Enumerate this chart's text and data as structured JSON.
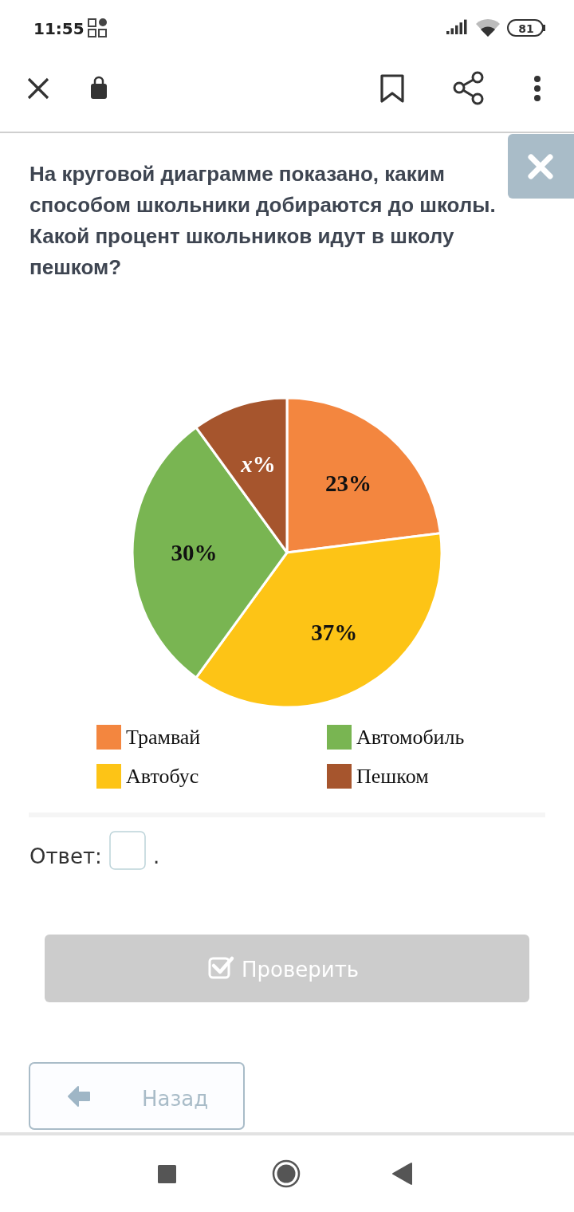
{
  "chart_data": {
    "type": "pie",
    "title": "На круговой диаграмме показано, каким способом школьники добираются до школы. Какой процент школьников идут в школу пешком?",
    "categories": [
      "Трамвай",
      "Автобус",
      "Автомобиль",
      "Пешком"
    ],
    "values": [
      23,
      37,
      30,
      10
    ],
    "colors": [
      "#f3863f",
      "#fdc416",
      "#79b552",
      "#a6552d"
    ],
    "value_labels": [
      "23%",
      "37%",
      "30%",
      "x%"
    ],
    "legend": "bottom",
    "annotations": [
      "11:55",
      "81",
      "Ответ:",
      ".",
      "Проверить",
      "Назад"
    ]
  }
}
